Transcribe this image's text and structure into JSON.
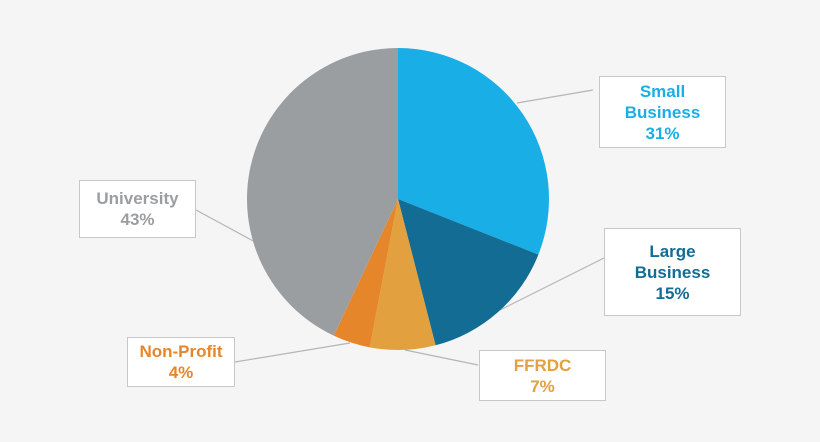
{
  "chart_data": {
    "type": "pie",
    "title": "",
    "slices": [
      {
        "label": "Small Business",
        "line1": "Small",
        "line2": "Business",
        "value": 31,
        "value_label": "31%",
        "color": "#1aaee6"
      },
      {
        "label": "Large Business",
        "line1": "Large",
        "line2": "Business",
        "value": 15,
        "value_label": "15%",
        "color": "#136c94"
      },
      {
        "label": "FFRDC",
        "line1": "FFRDC",
        "line2": "",
        "value": 7,
        "value_label": "7%",
        "color": "#e3a03e"
      },
      {
        "label": "Non-Profit",
        "line1": "Non-Profit",
        "line2": "",
        "value": 4,
        "value_label": "4%",
        "color": "#e5862a"
      },
      {
        "label": "University",
        "line1": "University",
        "line2": "",
        "value": 43,
        "value_label": "43%",
        "color": "#9b9ea1"
      }
    ],
    "start_angle": "top",
    "direction": "clockwise",
    "legend": "callout-labels"
  }
}
